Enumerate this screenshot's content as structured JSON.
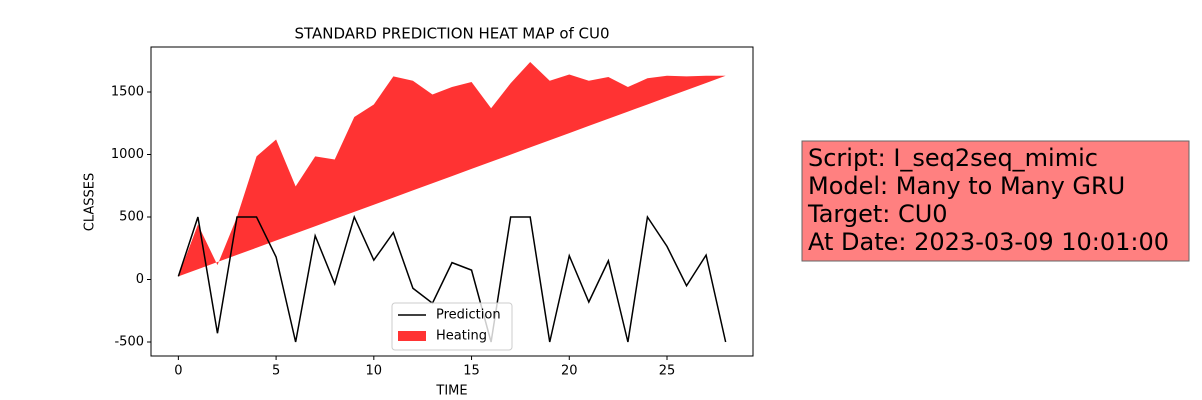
{
  "chart_data": {
    "type": "line",
    "title": "STANDARD PREDICTION HEAT MAP of CU0",
    "x_label": "TIME",
    "y_label": "CLASSES",
    "x": [
      0,
      1,
      2,
      3,
      4,
      5,
      6,
      7,
      8,
      9,
      10,
      11,
      12,
      13,
      14,
      15,
      16,
      17,
      18,
      19,
      20,
      21,
      22,
      23,
      24,
      25,
      26,
      27,
      28
    ],
    "series": [
      {
        "name": "Prediction",
        "color": "#000000",
        "kind": "line",
        "values": [
          25,
          500,
          -430,
          500,
          500,
          180,
          -500,
          350,
          -35,
          500,
          155,
          375,
          -70,
          -190,
          135,
          75,
          -500,
          500,
          500,
          -500,
          190,
          -180,
          150,
          -500,
          500,
          265,
          -50,
          195,
          -500
        ]
      },
      {
        "name": "Heating",
        "color": "#ff3333",
        "kind": "area",
        "values": [
          25,
          440,
          115,
          500,
          985,
          1120,
          745,
          985,
          960,
          1300,
          1400,
          1625,
          1590,
          1480,
          1540,
          1580,
          1370,
          1570,
          1740,
          1590,
          1640,
          1590,
          1620,
          1540,
          1610,
          1630,
          1625,
          1630,
          1630
        ],
        "base": [
          25,
          82,
          140,
          197,
          254,
          312,
          369,
          426,
          484,
          541,
          598,
          655,
          713,
          770,
          827,
          885,
          942,
          999,
          1057,
          1114,
          1171,
          1229,
          1286,
          1343,
          1400,
          1458,
          1515,
          1572,
          1630
        ]
      }
    ],
    "xlim": [
      -1.4,
      29.4
    ],
    "ylim": [
      -612,
      1860
    ],
    "xticks": [
      0,
      5,
      10,
      15,
      20,
      25
    ],
    "yticks": [
      -500,
      0,
      500,
      1000,
      1500
    ],
    "grid": false,
    "legend": "lower center",
    "annotation": [
      "Script: I_seq2seq_mimic",
      "Model: Many to Many GRU",
      "Target: CU0",
      "At Date: 2023-03-09 10:01:00"
    ],
    "annotation_color": "#ff8080"
  }
}
